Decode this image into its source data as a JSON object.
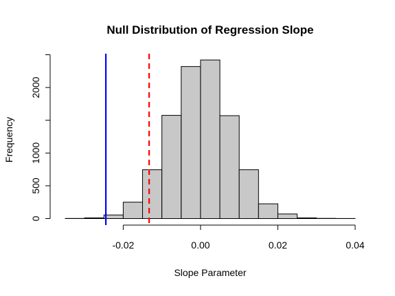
{
  "chart_data": {
    "type": "bar",
    "title": "Null Distribution of Regression Slope",
    "xlabel": "Slope Parameter",
    "ylabel": "Frequency",
    "xlim": [
      -0.035,
      0.04
    ],
    "ylim": [
      0,
      2500
    ],
    "x_ticks": [
      -0.02,
      0.0,
      0.02,
      0.04
    ],
    "x_tick_labels": [
      "-0.02",
      "0.00",
      "0.02",
      "0.04"
    ],
    "y_ticks": [
      0,
      500,
      1000,
      2000
    ],
    "y_tick_labels": [
      "0",
      "500",
      "1000",
      "2000"
    ],
    "y_axis_extra_ticks": [
      1500,
      2500
    ],
    "bins": [
      {
        "x0": -0.035,
        "x1": -0.03,
        "count": 2
      },
      {
        "x0": -0.03,
        "x1": -0.025,
        "count": 10
      },
      {
        "x0": -0.025,
        "x1": -0.02,
        "count": 55
      },
      {
        "x0": -0.02,
        "x1": -0.015,
        "count": 250
      },
      {
        "x0": -0.015,
        "x1": -0.01,
        "count": 745
      },
      {
        "x0": -0.01,
        "x1": -0.005,
        "count": 1575
      },
      {
        "x0": -0.005,
        "x1": 0.0,
        "count": 2320
      },
      {
        "x0": 0.0,
        "x1": 0.005,
        "count": 2420
      },
      {
        "x0": 0.005,
        "x1": 0.01,
        "count": 1570
      },
      {
        "x0": 0.01,
        "x1": 0.015,
        "count": 745
      },
      {
        "x0": 0.015,
        "x1": 0.02,
        "count": 225
      },
      {
        "x0": 0.02,
        "x1": 0.025,
        "count": 70
      },
      {
        "x0": 0.025,
        "x1": 0.03,
        "count": 10
      },
      {
        "x0": 0.03,
        "x1": 0.035,
        "count": 3
      },
      {
        "x0": 0.035,
        "x1": 0.04,
        "count": 1
      }
    ],
    "reference_lines": [
      {
        "x": -0.0245,
        "color": "#0000ff",
        "style": "solid"
      },
      {
        "x": -0.0133,
        "color": "#ff0000",
        "style": "dashed"
      }
    ],
    "bar_fill": "#c8c8c8",
    "bar_stroke": "#000000",
    "grid": false,
    "legend": "none"
  }
}
